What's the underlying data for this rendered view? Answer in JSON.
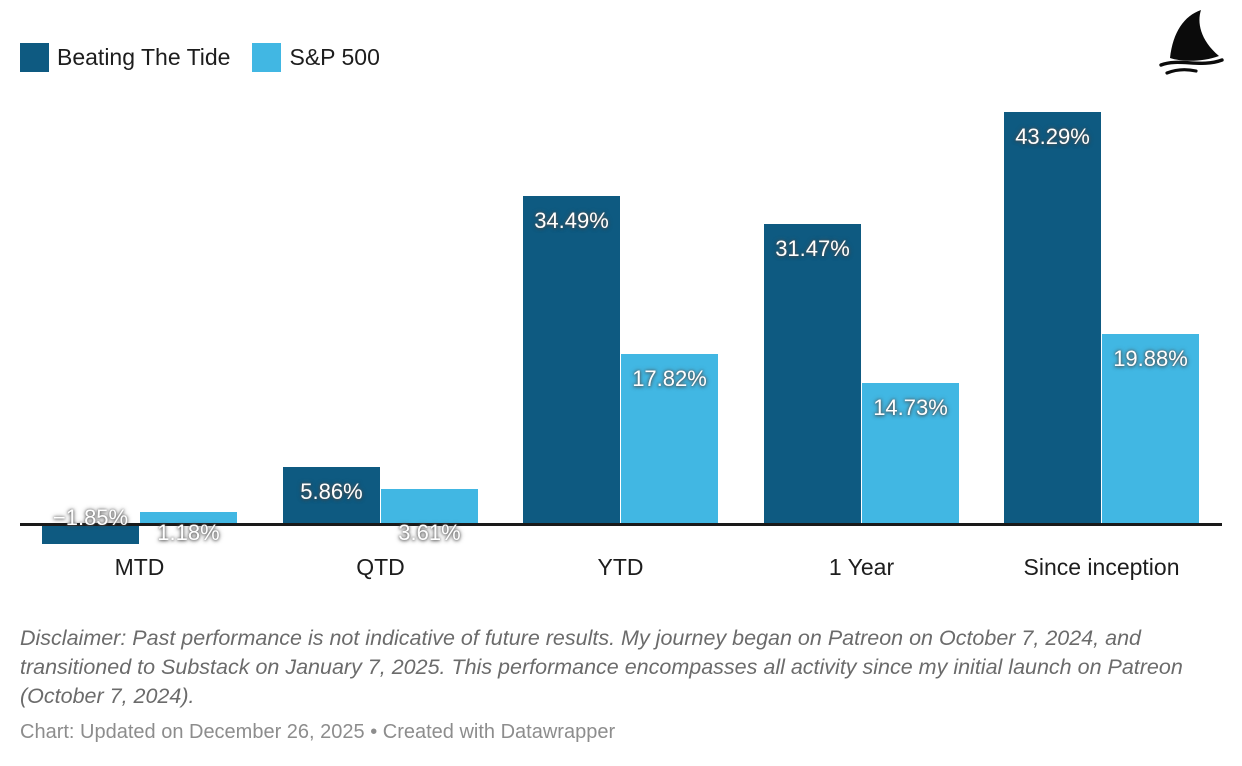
{
  "legend": {
    "items": [
      {
        "label": "Beating The Tide",
        "color": "#0e5a81"
      },
      {
        "label": "S&P 500",
        "color": "#41b7e3"
      }
    ]
  },
  "icons": {
    "logo": "shark-fin-icon"
  },
  "colors": {
    "axis": "#1a1a1a",
    "series_dark": "#0e5a81",
    "series_light": "#41b7e3",
    "text_dark": "#1d1d1d",
    "text_disclaimer": "#6b6b6b",
    "text_footer": "#8d8d8d"
  },
  "chart_data": {
    "type": "bar",
    "title": "",
    "xlabel": "",
    "ylabel": "",
    "grid": false,
    "y_axis_visible": false,
    "legend_position": "top-left",
    "ylim": [
      -5,
      46
    ],
    "value_format": "percent",
    "categories": [
      "MTD",
      "QTD",
      "YTD",
      "1 Year",
      "Since inception"
    ],
    "series": [
      {
        "name": "Beating The Tide",
        "color": "#0e5a81",
        "values": [
          -1.85,
          5.86,
          34.49,
          31.47,
          43.29
        ],
        "labels": [
          "−1.85%",
          "5.86%",
          "34.49%",
          "31.47%",
          "43.29%"
        ]
      },
      {
        "name": "S&P 500",
        "color": "#41b7e3",
        "values": [
          1.18,
          3.61,
          17.82,
          14.73,
          19.88
        ],
        "labels": [
          "1.18%",
          "3.61%",
          "17.82%",
          "14.73%",
          "19.88%"
        ]
      }
    ]
  },
  "disclaimer": "Disclaimer: Past performance is not indicative of future results. My journey began on Patreon on October 7, 2024, and transitioned to Substack on January 7, 2025. This performance encompasses all activity since my initial launch on Patreon (October 7, 2024).",
  "footer": "Chart: Updated on December 26, 2025 • Created with Datawrapper"
}
